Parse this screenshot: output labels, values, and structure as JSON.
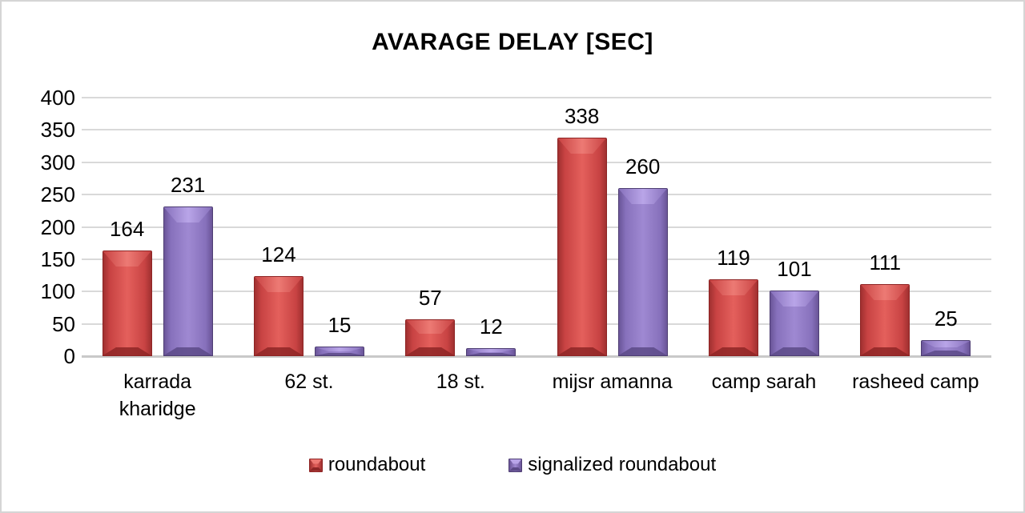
{
  "frame": {
    "background": "#FFFFFF",
    "border_color": "#D5D5D5"
  },
  "chart_data": {
    "type": "bar",
    "title": "AVARAGE DELAY [SEC]",
    "categories": [
      "karrada kharidge",
      "62 st.",
      "18 st.",
      "mijsr amanna",
      "camp sarah",
      "rasheed camp"
    ],
    "series": [
      {
        "name": "roundabout",
        "values": [
          164,
          124,
          57,
          338,
          119,
          111
        ],
        "colors": {
          "light": "#E4605C",
          "mid": "#C84343",
          "dark": "#A03030",
          "bevel_light": "#ED7A74",
          "bevel_dark": "#8E2626",
          "outline": "#8E2424"
        }
      },
      {
        "name": "signalized roundabout",
        "values": [
          231,
          15,
          12,
          260,
          101,
          25
        ],
        "colors": {
          "light": "#9F89D2",
          "mid": "#8771BC",
          "dark": "#6A5598",
          "bevel_light": "#B9A5E8",
          "bevel_dark": "#5C4A87",
          "outline": "#4E3E73"
        }
      }
    ],
    "xlabel": "",
    "ylabel": "",
    "ylim": [
      0,
      400
    ],
    "yticks": [
      0,
      50,
      100,
      150,
      200,
      250,
      300,
      350,
      400
    ],
    "grid": true,
    "gridline_color": "#D9D9D9",
    "axis_line_color": "#C9C9C9",
    "text_color": "#000000",
    "legend_position": "bottom",
    "data_labels": true
  }
}
